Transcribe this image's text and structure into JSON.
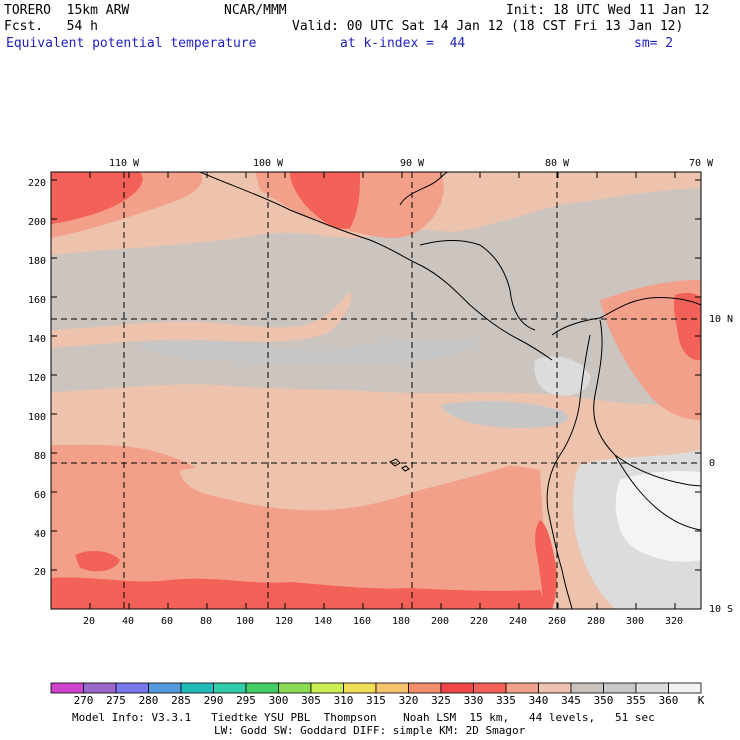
{
  "header": {
    "model": "TORERO  15km ARW",
    "org": "NCAR/MMM",
    "init": "Init: 18 UTC Wed 11 Jan 12",
    "fcst": "Fcst.   54 h",
    "valid": "Valid: 00 UTC Sat 14 Jan 12 (18 CST Fri 13 Jan 12)",
    "field": "Equivalent potential temperature",
    "level": "at k-index =  44",
    "smooth": "sm= 2"
  },
  "map": {
    "lon_labels": [
      "110 W",
      "100 W",
      "90 W",
      "80 W",
      "70 W"
    ],
    "lat_labels": [
      "10 N",
      "0",
      "10 S"
    ],
    "y_ticks": [
      "20",
      "40",
      "60",
      "80",
      "100",
      "120",
      "140",
      "160",
      "180",
      "200",
      "220"
    ],
    "x_ticks": [
      "20",
      "40",
      "60",
      "80",
      "100",
      "120",
      "140",
      "160",
      "180",
      "200",
      "220",
      "240",
      "260",
      "280",
      "300",
      "320"
    ]
  },
  "legend": {
    "labels": [
      "270",
      "275",
      "280",
      "285",
      "290",
      "295",
      "300",
      "305",
      "310",
      "315",
      "320",
      "325",
      "330",
      "335",
      "340",
      "345",
      "350",
      "355",
      "360"
    ],
    "unit": "K",
    "colors": [
      "#cc44cc",
      "#9966cc",
      "#7777ee",
      "#5599dd",
      "#22bbbb",
      "#33ccaa",
      "#44cc66",
      "#88dd55",
      "#ccee55",
      "#eedd55",
      "#f5c470",
      "#f58e6a",
      "#f04848",
      "#f36258",
      "#f3a08a",
      "#eec3ad",
      "#c9c3bf",
      "#c8c8c8",
      "#dddddd",
      "#f4f4f4"
    ]
  },
  "footer": {
    "line1": "Model Info: V3.3.1   Tiedtke YSU PBL  Thompson    Noah LSM  15 km,   44 levels,   51 sec",
    "line2": "LW: Godd SW: Goddard DIFF: simple KM: 2D Smagor"
  }
}
